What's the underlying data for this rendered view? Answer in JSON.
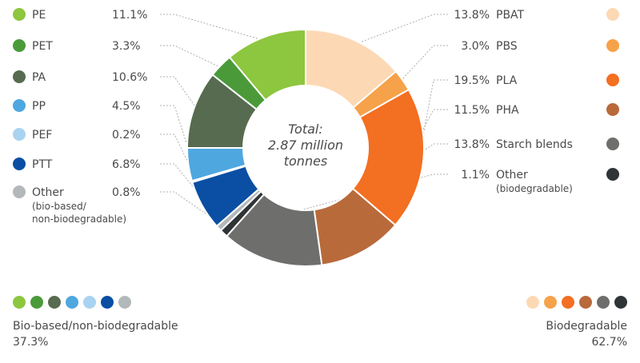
{
  "chart_data": {
    "type": "pie",
    "center_label": [
      "Total:",
      "2.87 million",
      "tonnes"
    ],
    "slices": [
      {
        "name": "PE",
        "value": 11.1,
        "label": "11.1%",
        "color": "#8dc63f",
        "group": "bio"
      },
      {
        "name": "PET",
        "value": 3.3,
        "label": "3.3%",
        "color": "#4a9a3a",
        "group": "bio"
      },
      {
        "name": "PA",
        "value": 10.6,
        "label": "10.6%",
        "color": "#566b4f",
        "group": "bio"
      },
      {
        "name": "PP",
        "value": 4.5,
        "label": "4.5%",
        "color": "#4fa7e0",
        "group": "bio"
      },
      {
        "name": "PEF",
        "value": 0.2,
        "label": "0.2%",
        "color": "#a9d3f0",
        "group": "bio"
      },
      {
        "name": "PTT",
        "value": 6.8,
        "label": "6.8%",
        "color": "#0a4fa3",
        "group": "bio"
      },
      {
        "name": "Other",
        "sub": [
          "(bio-based/",
          "non-biodegradable)"
        ],
        "value": 0.8,
        "label": "0.8%",
        "color": "#b3b8bb",
        "group": "bio"
      },
      {
        "name": "Other",
        "sub": [
          "(biodegradable)"
        ],
        "value": 1.1,
        "label": "1.1%",
        "color": "#2f3437",
        "group": "biodeg"
      },
      {
        "name": "Starch blends",
        "value": 13.8,
        "label": "13.8%",
        "color": "#6e6e6c",
        "group": "biodeg"
      },
      {
        "name": "PHA",
        "value": 11.5,
        "label": "11.5%",
        "color": "#b86a3b",
        "group": "biodeg"
      },
      {
        "name": "PLA",
        "value": 19.5,
        "label": "19.5%",
        "color": "#f36f21",
        "group": "biodeg"
      },
      {
        "name": "PBS",
        "value": 3.0,
        "label": "3.0%",
        "color": "#f6a24a",
        "group": "biodeg"
      },
      {
        "name": "PBAT",
        "value": 13.8,
        "label": "13.8%",
        "color": "#fcd9b4",
        "group": "biodeg"
      }
    ],
    "groups": {
      "bio": {
        "label": "Bio-based/non-biodegradable",
        "percent": "37.3%"
      },
      "biodeg": {
        "label": "Biodegradable",
        "percent": "62.7%"
      }
    }
  },
  "legend": {
    "left_order": [
      0,
      1,
      2,
      3,
      4,
      5,
      6
    ],
    "right_order": [
      12,
      11,
      10,
      9,
      8,
      7
    ]
  }
}
